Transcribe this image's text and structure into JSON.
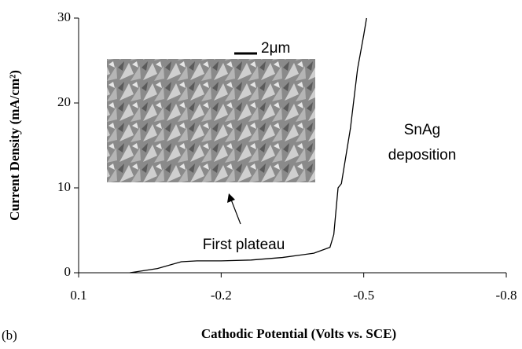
{
  "chart_data": {
    "type": "line",
    "x_label": "Cathodic Potential (Volts vs. SCE)",
    "y_label": "Current Density (mA/cm²)",
    "panel_label": "(b)",
    "annotations": {
      "deposition": [
        "SnAg",
        "deposition"
      ],
      "plateau": "First plateau",
      "scale_bar": "2μm"
    },
    "x": [
      -0.008,
      -0.066,
      -0.116,
      -0.149,
      -0.2,
      -0.263,
      -0.329,
      -0.395,
      -0.429,
      -0.437,
      -0.446,
      -0.453,
      -0.472,
      -0.487,
      -0.5,
      -0.506
    ],
    "values": [
      0,
      0.5,
      1.3,
      1.4,
      1.4,
      1.5,
      1.8,
      2.3,
      3.0,
      4.5,
      10,
      10.5,
      17,
      24,
      28,
      30
    ],
    "color": "#000000",
    "xlim": [
      0.1,
      -0.8
    ],
    "xticks": [
      0.1,
      -0.2,
      -0.5,
      -0.8
    ],
    "ylim": [
      0,
      30
    ],
    "yticks": [
      0,
      10,
      20,
      30
    ]
  }
}
